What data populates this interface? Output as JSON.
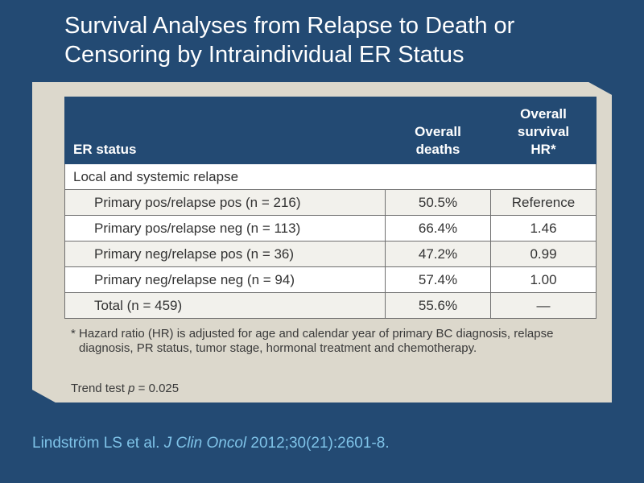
{
  "title": {
    "line1": "Survival Analyses from Relapse to Death or",
    "line2": "Censoring by Intraindividual ER Status"
  },
  "table": {
    "headers": {
      "col1": "ER status",
      "col2_line1": "Overall",
      "col2_line2": "deaths",
      "col3_line1": "Overall",
      "col3_line2": "survival",
      "col3_line3": "HR*"
    },
    "section": "Local and systemic relapse",
    "rows": [
      {
        "label": "Primary pos/relapse pos (n = 216)",
        "deaths": "50.5%",
        "hr": "Reference"
      },
      {
        "label": "Primary pos/relapse neg (n = 113)",
        "deaths": "66.4%",
        "hr": "1.46"
      },
      {
        "label": "Primary neg/relapse pos (n = 36)",
        "deaths": "47.2%",
        "hr": "0.99"
      },
      {
        "label": "Primary neg/relapse neg (n = 94)",
        "deaths": "57.4%",
        "hr": "1.00"
      },
      {
        "label": "Total (n = 459)",
        "deaths": "55.6%",
        "hr": "—"
      }
    ]
  },
  "footnote": {
    "mark": "*",
    "text": "Hazard ratio (HR) is adjusted for age and calendar year of primary BC diagnosis, relapse diagnosis, PR status, tumor stage, hormonal treatment and chemotherapy."
  },
  "trend": {
    "prefix": "Trend test ",
    "p": "p",
    "suffix": " = 0.025"
  },
  "citation": {
    "authors": "Lindström LS et al. ",
    "journal": "J Clin Oncol",
    "details": " 2012;30(21):2601-8."
  },
  "colors": {
    "background": "#234a73",
    "panel": "#dcd8cc",
    "header": "#234a73",
    "citation": "#7fc3e8"
  }
}
